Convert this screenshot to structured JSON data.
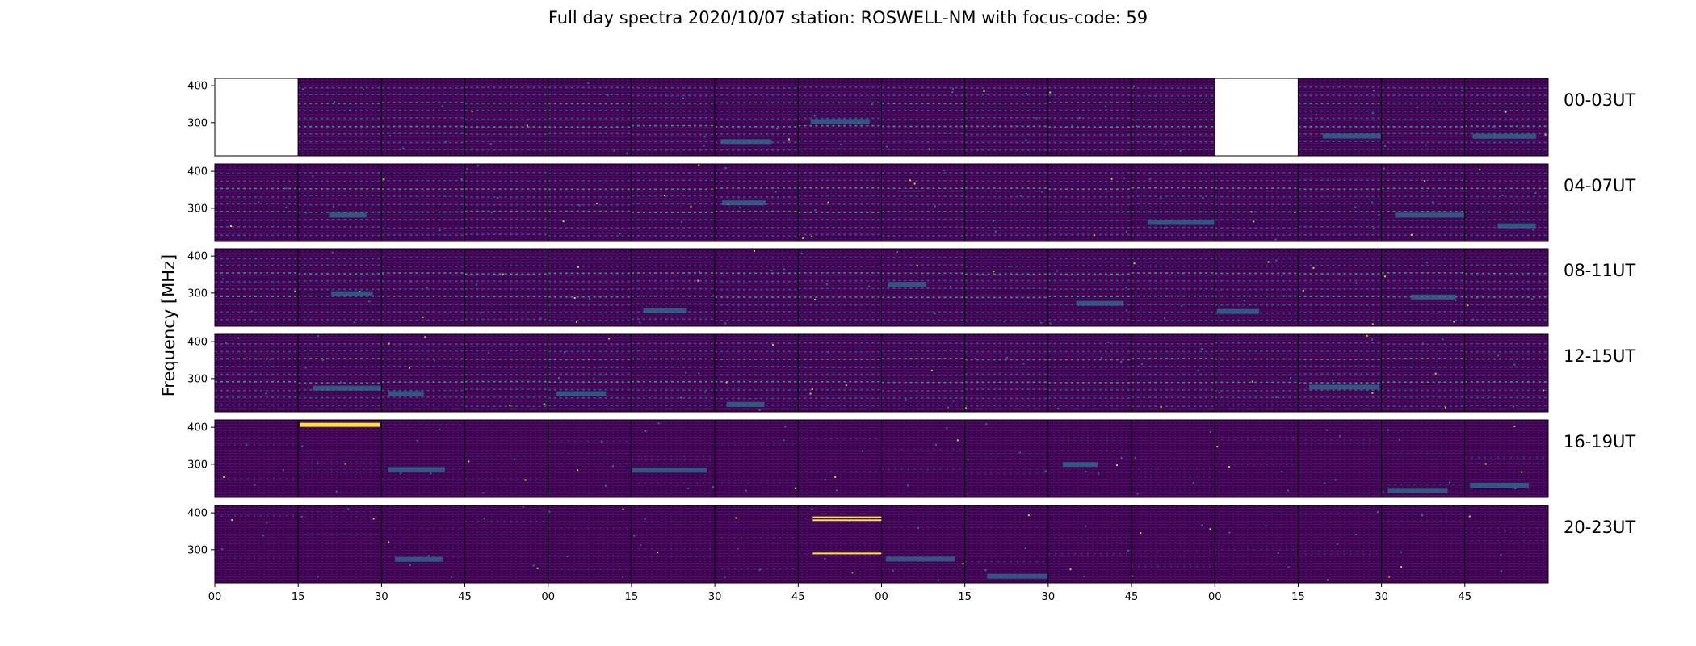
{
  "title": "Full day spectra 2020/10/07 station: ROSWELL-NM with focus-code: 59",
  "chart_data": {
    "type": "heatmap",
    "ylabel": "Frequency [MHz]",
    "xlabel": "",
    "colormap": "viridis",
    "ylim": [
      210,
      420
    ],
    "yticks": [
      300,
      400
    ],
    "xtick_labels": [
      "00",
      "15",
      "30",
      "45",
      "00",
      "15",
      "30",
      "45",
      "00",
      "15",
      "30",
      "45",
      "00",
      "15",
      "30",
      "45"
    ],
    "panels_per_row": 16,
    "rows": [
      {
        "label": "00-03UT",
        "missing_panels": [
          0,
          12
        ]
      },
      {
        "label": "04-07UT",
        "missing_panels": []
      },
      {
        "label": "08-11UT",
        "missing_panels": []
      },
      {
        "label": "12-15UT",
        "missing_panels": []
      },
      {
        "label": "16-19UT",
        "missing_panels": []
      },
      {
        "label": "20-23UT",
        "missing_panels": []
      }
    ],
    "colors": {
      "background": "#440154",
      "stripe": "#31688e",
      "bright": "#35b779",
      "hot": "#fde725",
      "panel_border": "#000000"
    }
  }
}
